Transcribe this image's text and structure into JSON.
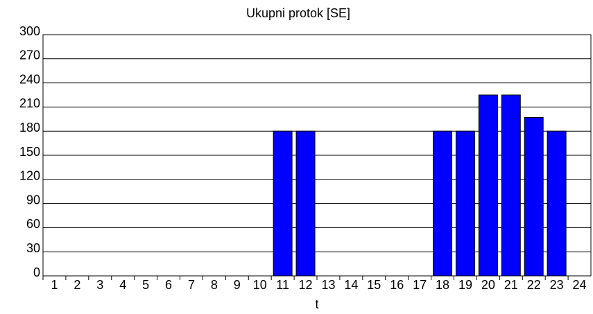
{
  "chart_data": {
    "type": "bar",
    "title": "Ukupni protok [SE]",
    "x_label": "t",
    "categories": [
      "1",
      "2",
      "3",
      "4",
      "5",
      "6",
      "7",
      "8",
      "9",
      "10",
      "11",
      "12",
      "13",
      "14",
      "15",
      "16",
      "17",
      "18",
      "19",
      "20",
      "21",
      "22",
      "23",
      "24"
    ],
    "values": [
      0,
      0,
      0,
      0,
      0,
      0,
      0,
      0,
      0,
      0,
      180,
      180,
      0,
      0,
      0,
      0,
      0,
      180,
      180,
      225,
      225,
      197,
      180,
      0
    ],
    "color": "#0000ff",
    "ylim": [
      0,
      300
    ],
    "yticks": [
      0,
      30,
      60,
      90,
      120,
      150,
      180,
      210,
      240,
      270,
      300
    ],
    "grid": true
  }
}
